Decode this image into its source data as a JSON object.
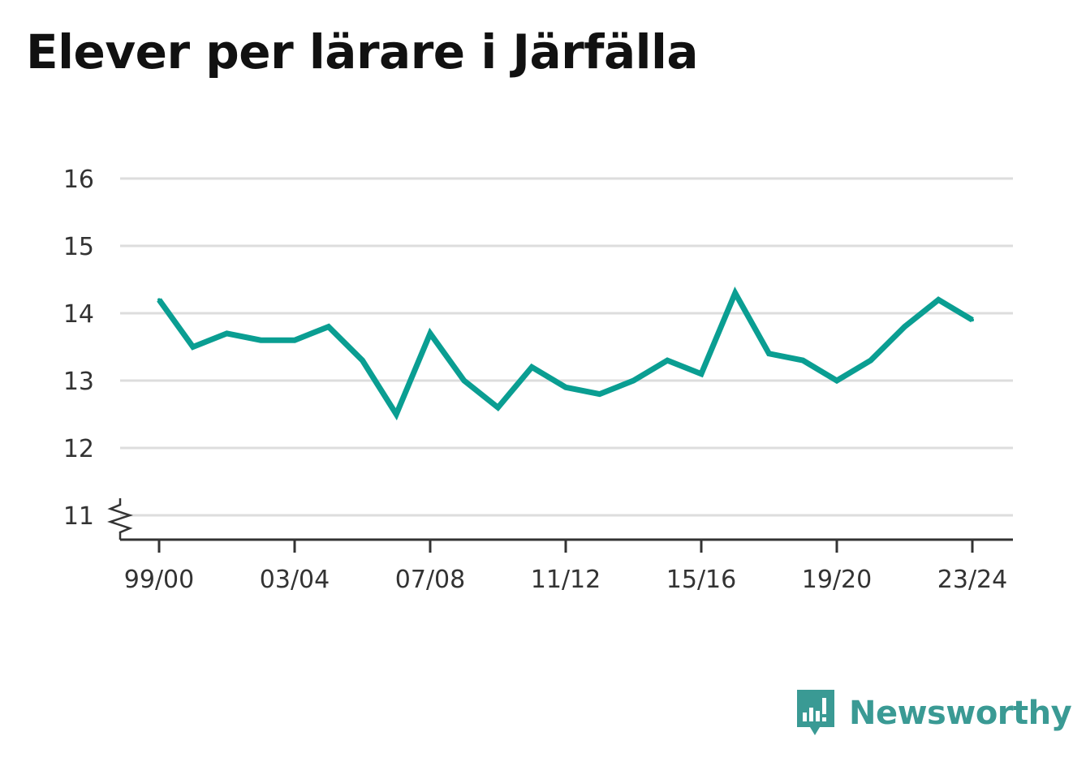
{
  "title": "Elever per lärare i Järfälla",
  "brand": {
    "name": "Newsworthy",
    "icon": "newsworthy-chart-icon",
    "color": "#3a9a94"
  },
  "colors": {
    "line": "#0a9e92",
    "grid": "#dddddd",
    "axis": "#333333",
    "text": "#333333"
  },
  "chart_data": {
    "type": "line",
    "title": "Elever per lärare i Järfälla",
    "xlabel": "",
    "ylabel": "",
    "x": [
      "99/00",
      "00/01",
      "01/02",
      "02/03",
      "03/04",
      "04/05",
      "05/06",
      "06/07",
      "07/08",
      "08/09",
      "09/10",
      "10/11",
      "11/12",
      "12/13",
      "13/14",
      "14/15",
      "15/16",
      "16/17",
      "17/18",
      "18/19",
      "19/20",
      "20/21",
      "21/22",
      "22/23",
      "23/24"
    ],
    "x_tick_labels": [
      "99/00",
      "03/04",
      "07/08",
      "11/12",
      "15/16",
      "19/20",
      "23/24"
    ],
    "y_tick_labels": [
      "11",
      "12",
      "13",
      "14",
      "15",
      "16"
    ],
    "ylim": [
      11,
      16
    ],
    "y_axis_break": true,
    "grid": true,
    "series": [
      {
        "values": [
          14.2,
          13.5,
          13.7,
          13.6,
          13.6,
          13.8,
          13.3,
          12.5,
          13.7,
          13.0,
          12.6,
          13.2,
          12.9,
          12.8,
          13.0,
          13.3,
          13.1,
          14.3,
          13.4,
          13.3,
          13.0,
          13.3,
          13.8,
          14.2,
          13.9
        ]
      }
    ]
  }
}
